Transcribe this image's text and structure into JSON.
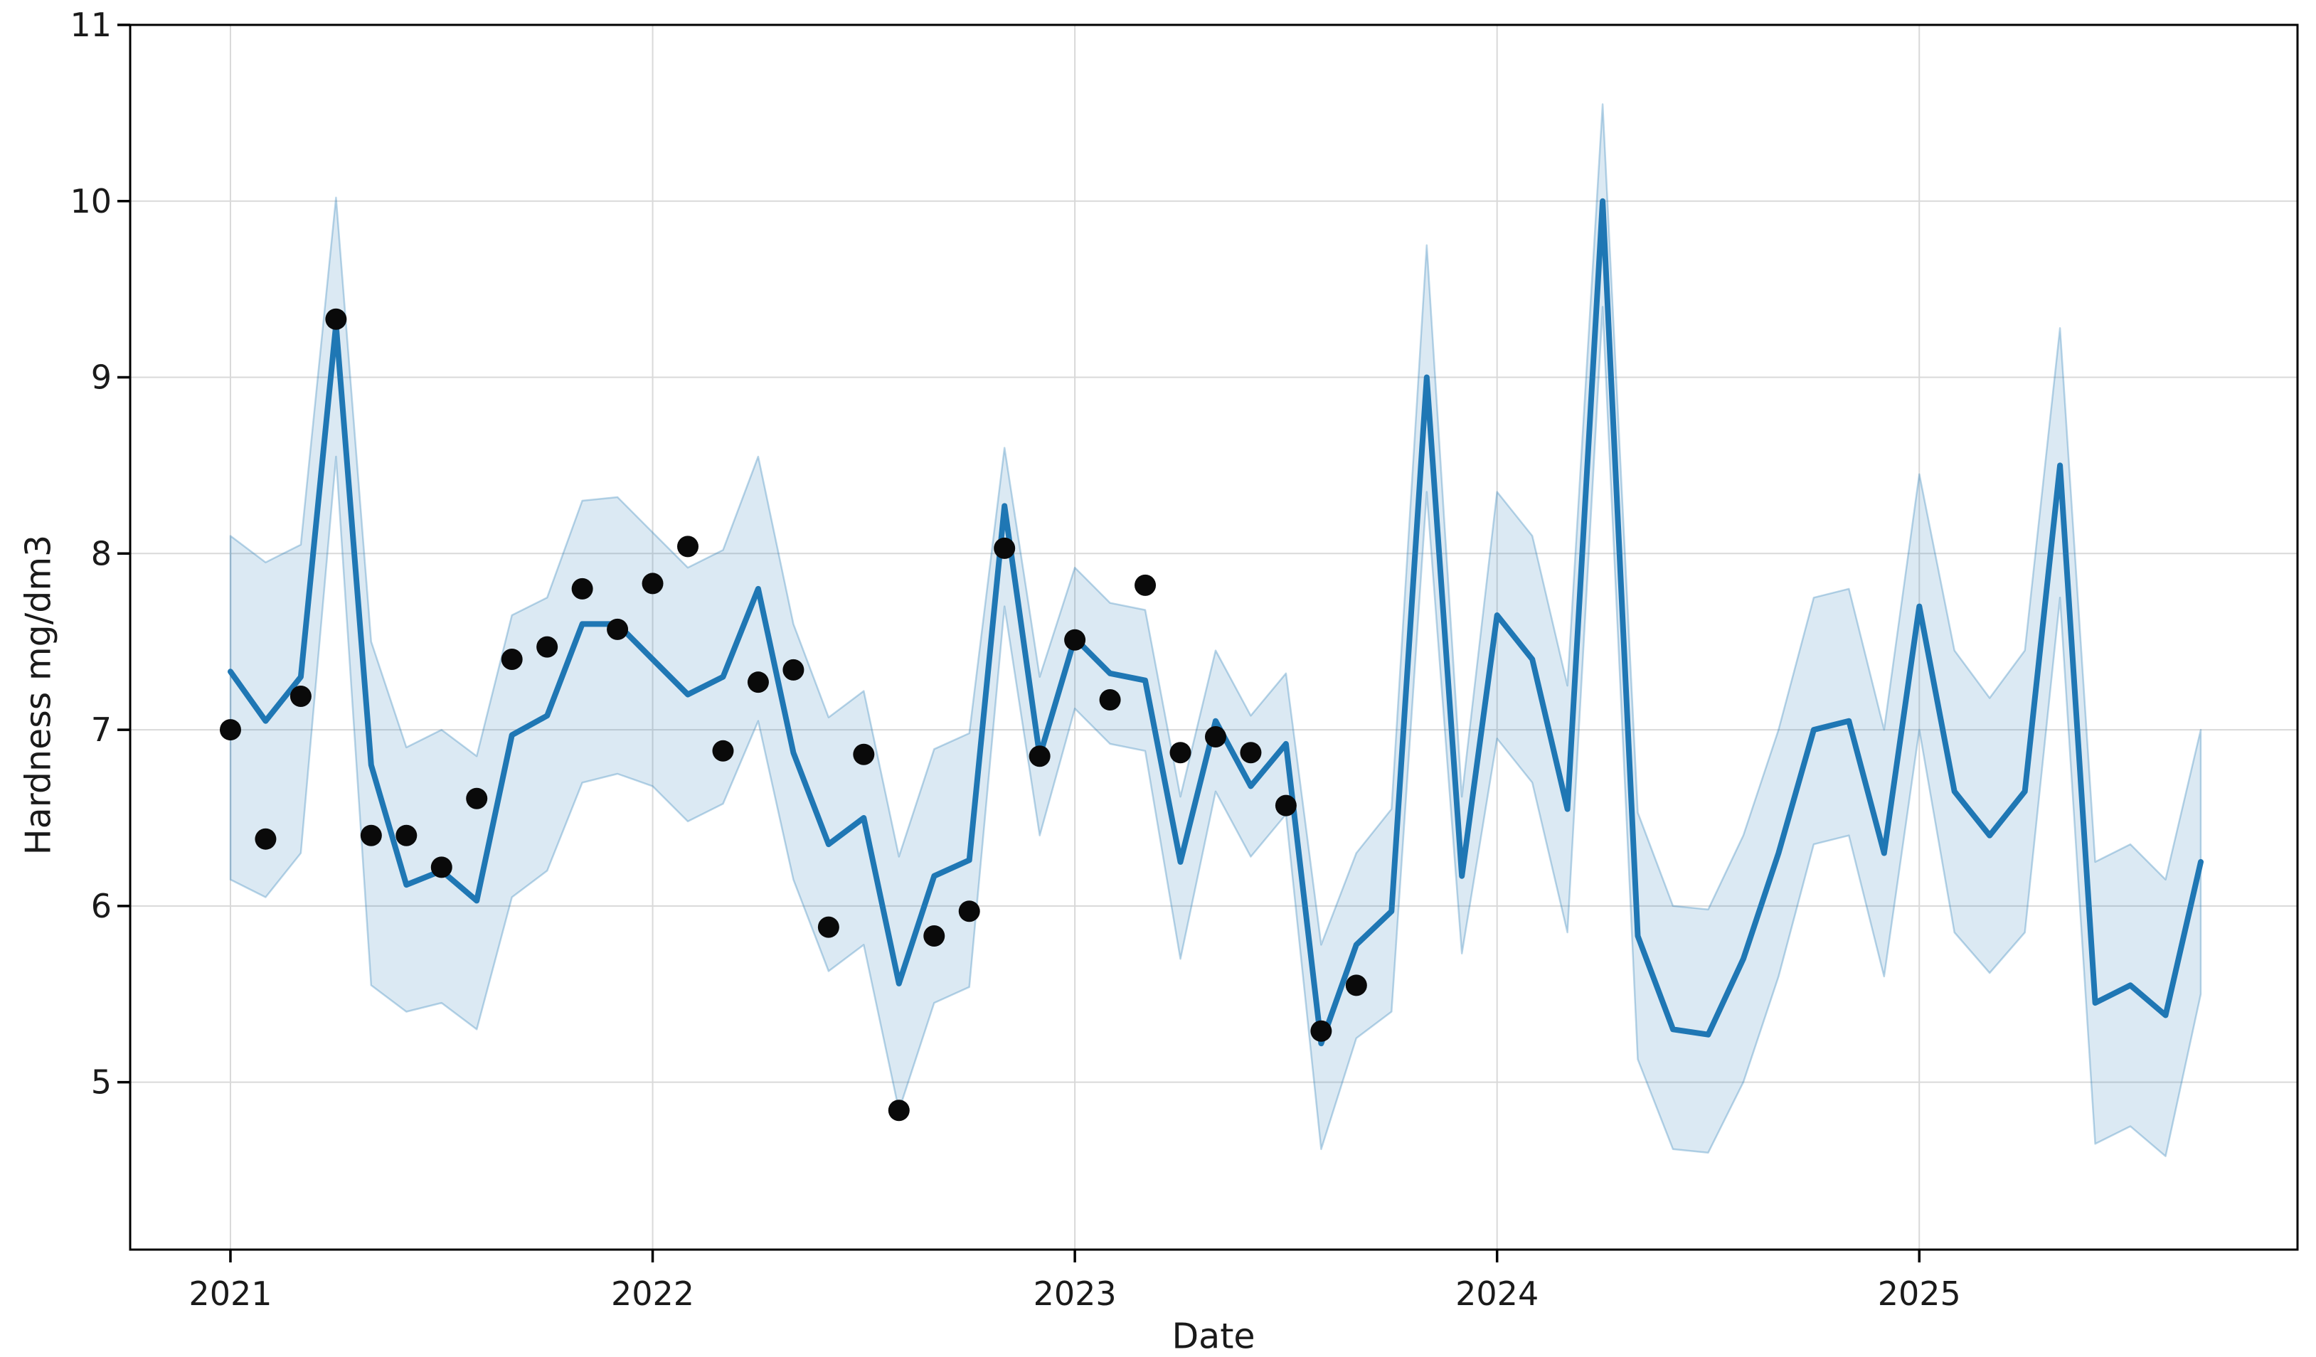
{
  "figure": {
    "background": "#ffffff"
  },
  "chart_data": {
    "type": "line",
    "title": "",
    "xlabel": "Date",
    "ylabel": "Hardness mg/dm3",
    "grid": true,
    "legend": "none",
    "xlim_months": [
      -2.85,
      58.75
    ],
    "ylim": [
      4.05,
      11
    ],
    "x_ticks": {
      "months": [
        0,
        12,
        24,
        36,
        48
      ],
      "labels": [
        "2021",
        "2022",
        "2023",
        "2024",
        "2025"
      ]
    },
    "y_ticks": [
      5,
      6,
      7,
      8,
      9,
      10,
      11
    ],
    "months": [
      "2021-01",
      "2021-02",
      "2021-03",
      "2021-04",
      "2021-05",
      "2021-06",
      "2021-07",
      "2021-08",
      "2021-09",
      "2021-10",
      "2021-11",
      "2021-12",
      "2022-01",
      "2022-02",
      "2022-03",
      "2022-04",
      "2022-05",
      "2022-06",
      "2022-07",
      "2022-08",
      "2022-09",
      "2022-10",
      "2022-11",
      "2022-12",
      "2023-01",
      "2023-02",
      "2023-03",
      "2023-04",
      "2023-05",
      "2023-06",
      "2023-07",
      "2023-08",
      "2023-09",
      "2023-10",
      "2023-11",
      "2023-12",
      "2024-01",
      "2024-02",
      "2024-03",
      "2024-04",
      "2024-05",
      "2024-06",
      "2024-07",
      "2024-08",
      "2024-09",
      "2024-10",
      "2024-11",
      "2024-12",
      "2025-01",
      "2025-02",
      "2025-03",
      "2025-04",
      "2025-05",
      "2025-06",
      "2025-07",
      "2025-08",
      "2025-09"
    ],
    "series": [
      {
        "name": "hardness-model-line",
        "values": [
          7.33,
          7.05,
          7.3,
          9.3,
          6.8,
          6.12,
          6.2,
          6.03,
          6.97,
          7.08,
          7.6,
          7.6,
          7.4,
          7.2,
          7.3,
          7.8,
          6.87,
          6.35,
          6.5,
          5.56,
          6.17,
          6.26,
          8.27,
          6.85,
          7.52,
          7.32,
          7.28,
          6.25,
          7.05,
          6.68,
          6.92,
          5.22,
          5.78,
          5.97,
          9.0,
          6.17,
          7.65,
          7.4,
          6.55,
          10.0,
          5.83,
          5.3,
          5.27,
          5.7,
          6.3,
          7.0,
          7.05,
          6.3,
          7.7,
          6.65,
          6.4,
          6.65,
          8.5,
          5.45,
          5.55,
          5.38,
          6.25
        ]
      }
    ],
    "band": {
      "name": "confidence-band",
      "upper": [
        8.1,
        7.95,
        8.05,
        10.02,
        7.5,
        6.9,
        7.0,
        6.85,
        7.65,
        7.75,
        8.3,
        8.32,
        8.12,
        7.92,
        8.02,
        8.55,
        7.6,
        7.07,
        7.22,
        6.28,
        6.89,
        6.98,
        8.6,
        7.3,
        7.92,
        7.72,
        7.68,
        6.62,
        7.45,
        7.08,
        7.32,
        5.78,
        6.3,
        6.55,
        9.75,
        6.62,
        8.35,
        8.1,
        7.25,
        10.55,
        6.53,
        6.0,
        5.98,
        6.4,
        7.0,
        7.75,
        7.8,
        7.0,
        8.45,
        7.45,
        7.18,
        7.45,
        9.28,
        6.25,
        6.35,
        6.15,
        7.0
      ],
      "lower": [
        6.15,
        6.05,
        6.3,
        8.55,
        5.55,
        5.4,
        5.45,
        5.3,
        6.05,
        6.2,
        6.7,
        6.75,
        6.68,
        6.48,
        6.58,
        7.05,
        6.15,
        5.63,
        5.78,
        4.84,
        5.45,
        5.54,
        7.7,
        6.4,
        7.12,
        6.92,
        6.88,
        5.7,
        6.65,
        6.28,
        6.52,
        4.62,
        5.25,
        5.4,
        8.35,
        5.73,
        6.95,
        6.7,
        5.85,
        9.4,
        5.13,
        4.62,
        4.6,
        5.0,
        5.6,
        6.35,
        6.4,
        5.6,
        7.0,
        5.85,
        5.62,
        5.85,
        7.75,
        4.65,
        4.75,
        4.58,
        5.5
      ]
    },
    "observations": {
      "name": "observed-hardness-dots",
      "month_count": 33,
      "values": [
        7.0,
        6.38,
        7.19,
        9.33,
        6.4,
        6.4,
        6.22,
        6.61,
        7.4,
        7.47,
        7.8,
        7.57,
        7.83,
        8.04,
        6.88,
        7.27,
        7.34,
        5.88,
        6.86,
        4.84,
        5.83,
        5.97,
        8.03,
        6.85,
        7.51,
        7.17,
        7.82,
        6.87,
        6.96,
        6.87,
        6.57,
        5.29,
        5.55
      ]
    },
    "colors": {
      "line": "#1f77b4",
      "band_fill": "rgba(31,119,180,0.16)",
      "band_edge": "rgba(31,119,180,0.30)",
      "dot": "#0a0a0a",
      "grid": "#d9d9d9",
      "spine": "#000000",
      "text": "#1a1a1a"
    },
    "marker_radius": 15,
    "line_width": 8
  }
}
